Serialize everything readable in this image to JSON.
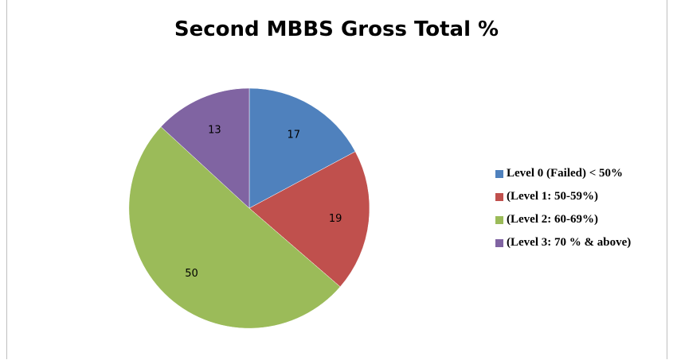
{
  "chart_data": {
    "type": "pie",
    "title": "Second MBBS Gross Total %",
    "categories": [
      "Level 0 (Failed) < 50%",
      "(Level 1: 50-59%)",
      "(Level 2: 60-69%)",
      "(Level 3: 70 % & above)"
    ],
    "values": [
      17,
      19,
      50,
      13
    ],
    "colors": [
      "#4f81bd",
      "#c0504d",
      "#9bbb59",
      "#8064a2"
    ],
    "legend": "right",
    "data_labels": true
  }
}
